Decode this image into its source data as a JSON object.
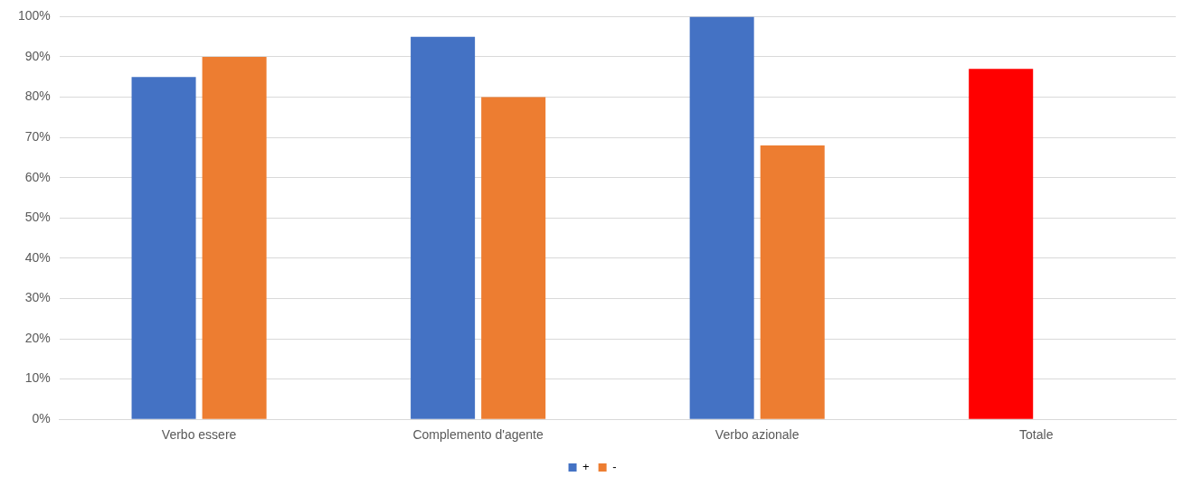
{
  "chart_data": {
    "type": "bar",
    "categories": [
      "Verbo essere",
      "Complemento d'agente",
      "Verbo azionale",
      "Totale"
    ],
    "series": [
      {
        "name": "+",
        "color": "#4472c4",
        "colors": [
          "#4472c4",
          "#4472c4",
          "#4472c4",
          "#ff0000"
        ],
        "values": [
          85,
          95,
          100,
          87
        ]
      },
      {
        "name": "-",
        "color": "#ed7d31",
        "values": [
          90,
          80,
          68,
          null
        ]
      }
    ],
    "ylim": [
      0,
      100
    ],
    "yticks": [
      {
        "value": 0,
        "label": "0%"
      },
      {
        "value": 10,
        "label": "10%"
      },
      {
        "value": 20,
        "label": "20%"
      },
      {
        "value": 30,
        "label": "30%"
      },
      {
        "value": 40,
        "label": "40%"
      },
      {
        "value": 50,
        "label": "50%"
      },
      {
        "value": 60,
        "label": "60%"
      },
      {
        "value": 70,
        "label": "70%"
      },
      {
        "value": 80,
        "label": "80%"
      },
      {
        "value": 90,
        "label": "90%"
      },
      {
        "value": 100,
        "label": "100%"
      }
    ],
    "grid": "y",
    "legend": "bottom"
  }
}
